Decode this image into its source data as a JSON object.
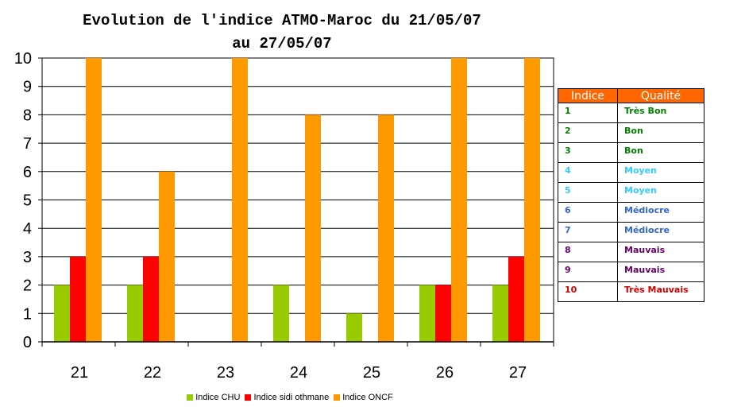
{
  "title_line1": "Evolution de l'indice ATMO-Maroc du 21/05/07",
  "title_line2": "au 27/05/07",
  "chart_data": {
    "type": "bar",
    "title": "Evolution de l'indice ATMO-Maroc du 21/05/07 au 27/05/07",
    "categories": [
      "21",
      "22",
      "23",
      "24",
      "25",
      "26",
      "27"
    ],
    "y_ticks": [
      "0",
      "1",
      "2",
      "3",
      "4",
      "5",
      "6",
      "7",
      "8",
      "9",
      "10"
    ],
    "ylim": [
      0,
      10
    ],
    "grid": true,
    "legend_position": "bottom",
    "series": [
      {
        "name": "Indice CHU",
        "color": "#99cc00",
        "values": [
          2,
          2,
          0,
          2,
          1,
          2,
          2
        ]
      },
      {
        "name": "Indice sidi othmane",
        "color": "#ff0000",
        "values": [
          3,
          3,
          0,
          0,
          0,
          2,
          3
        ]
      },
      {
        "name": "Indice ONCF",
        "color": "#ff9900",
        "values": [
          10,
          6,
          10,
          8,
          8,
          10,
          10
        ]
      }
    ]
  },
  "quality_table": {
    "header_indice": "Indice",
    "header_qualite": "Qualité",
    "rows": [
      {
        "indice": "1",
        "qualite": "Très Bon",
        "color": "#008000"
      },
      {
        "indice": "2",
        "qualite": "Bon",
        "color": "#008000"
      },
      {
        "indice": "3",
        "qualite": "Bon",
        "color": "#008000"
      },
      {
        "indice": "4",
        "qualite": "Moyen",
        "color": "#33ccff"
      },
      {
        "indice": "5",
        "qualite": "Moyen",
        "color": "#33ccff"
      },
      {
        "indice": "6",
        "qualite": "Médiocre",
        "color": "#3366cc"
      },
      {
        "indice": "7",
        "qualite": "Médiocre",
        "color": "#3366cc"
      },
      {
        "indice": "8",
        "qualite": "Mauvais",
        "color": "#660066"
      },
      {
        "indice": "9",
        "qualite": "Mauvais",
        "color": "#660066"
      },
      {
        "indice": "10",
        "qualite": "Très Mauvais",
        "color": "#cc0000"
      }
    ]
  }
}
